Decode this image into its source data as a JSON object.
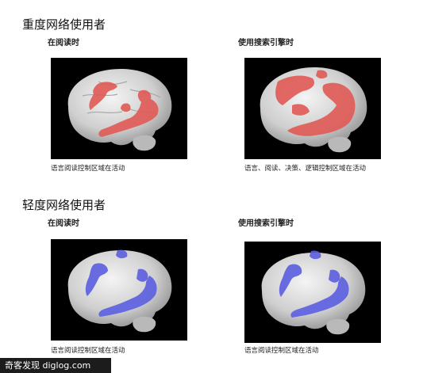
{
  "sections": [
    {
      "title": "重度网络使用者",
      "panels": [
        {
          "top_caption": "在阅读时",
          "bottom_caption": "语言阅读控制区域在活动",
          "activity_color": "#e05a55"
        },
        {
          "top_caption": "使用搜索引擎时",
          "bottom_caption": "语言、阅读、决策、逻辑控制区域在活动",
          "activity_color": "#e05a55"
        }
      ]
    },
    {
      "title": "轻度网络使用者",
      "panels": [
        {
          "top_caption": "在阅读时",
          "bottom_caption": "语言阅读控制区域在活动",
          "activity_color": "#5b5fe0"
        },
        {
          "top_caption": "使用搜索引擎时",
          "bottom_caption": "语言阅读控制区域在活动",
          "activity_color": "#5b5fe0"
        }
      ]
    }
  ],
  "watermark": "奇客发现 diglog.com"
}
